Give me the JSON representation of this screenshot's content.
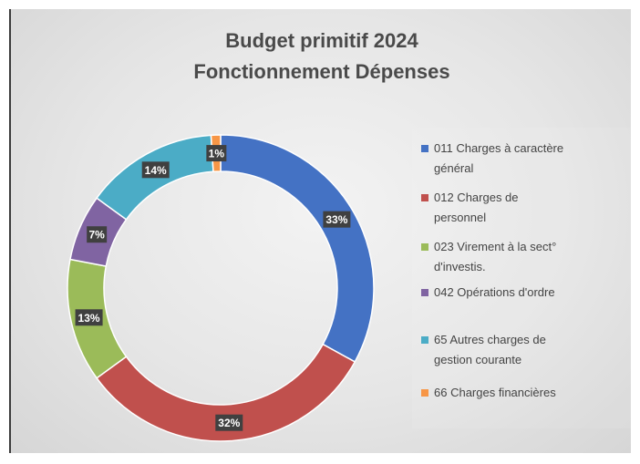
{
  "chart_data": {
    "type": "pie",
    "title_line1": "Budget primitif  2024",
    "title_line2": "Fonctionnement Dépenses",
    "legend_position": "right",
    "slices": [
      {
        "name": "011 Charges à caractère général",
        "value": 33,
        "label": "33%",
        "color": "#4472c4"
      },
      {
        "name": "012 Charges de personnel",
        "value": 32,
        "label": "32%",
        "color": "#c0504d"
      },
      {
        "name": "023 Virement à la sect° d'investis.",
        "value": 13,
        "label": "13%",
        "color": "#9bbb59"
      },
      {
        "name": "042 Opérations d'ordre",
        "value": 7,
        "label": "7%",
        "color": "#8064a2"
      },
      {
        "name": "65 Autres charges de gestion courante",
        "value": 14,
        "label": "14%",
        "color": "#4bacc6"
      },
      {
        "name": "66 Charges financières",
        "value": 1,
        "label": "1%",
        "color": "#f79646"
      }
    ]
  },
  "legend": [
    {
      "line1": "011 Charges à caractère",
      "line2": "général",
      "color": "#4472c4"
    },
    {
      "line1": "012 Charges de",
      "line2": "personnel",
      "color": "#c0504d"
    },
    {
      "line1": "023 Virement à la sect°",
      "line2": "d'investis.",
      "color": "#9bbb59"
    },
    {
      "line1": "042 Opérations d'ordre",
      "line2": "",
      "color": "#8064a2"
    },
    {
      "line1": "65 Autres charges de",
      "line2": "gestion courante",
      "color": "#4bacc6"
    },
    {
      "line1": "66 Charges financières",
      "line2": "",
      "color": "#f79646"
    }
  ]
}
